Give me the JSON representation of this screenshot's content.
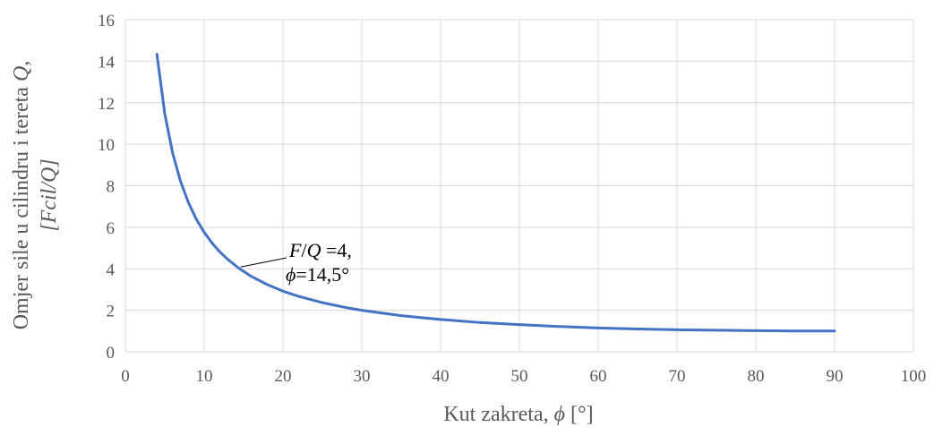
{
  "chart_data": {
    "type": "line",
    "xlabel_text": "Kut zakreta, ",
    "xlabel_symbol": "ϕ",
    "xlabel_unit": " [°]",
    "ylabel_line1": "Omjer sile u cilindru i tereta ",
    "ylabel_line1_italic": "Q",
    "ylabel_line1_end": ",",
    "ylabel_line2": "[Fcil/Q]",
    "xlim": [
      0,
      100
    ],
    "ylim": [
      0,
      16
    ],
    "xticks": [
      "0",
      "10",
      "20",
      "30",
      "40",
      "50",
      "60",
      "70",
      "80",
      "90",
      "100"
    ],
    "yticks": [
      "0",
      "2",
      "4",
      "6",
      "8",
      "10",
      "12",
      "14",
      "16"
    ],
    "grid": true,
    "series": [
      {
        "color": "#4472c4",
        "x": [
          4,
          5,
          6,
          7,
          8,
          9,
          10,
          11,
          12,
          13,
          14.5,
          16,
          18,
          20,
          22,
          25,
          28,
          30,
          35,
          40,
          45,
          50,
          55,
          60,
          65,
          70,
          75,
          80,
          85,
          90
        ],
        "y": [
          14.34,
          11.47,
          9.57,
          8.21,
          7.19,
          6.39,
          5.76,
          5.24,
          4.81,
          4.45,
          4.0,
          3.63,
          3.24,
          2.92,
          2.67,
          2.37,
          2.13,
          2.0,
          1.74,
          1.56,
          1.41,
          1.31,
          1.22,
          1.15,
          1.1,
          1.06,
          1.04,
          1.02,
          1.0,
          1.0
        ]
      }
    ],
    "annotation": {
      "line1_italic": "F",
      "line1_mid": "/",
      "line1_italic2": "Q",
      "line1_end": " =4,",
      "line2_symbol": "ϕ",
      "line2_end": "=14,5°",
      "point": {
        "x": 14.5,
        "y": 4.0
      }
    }
  }
}
